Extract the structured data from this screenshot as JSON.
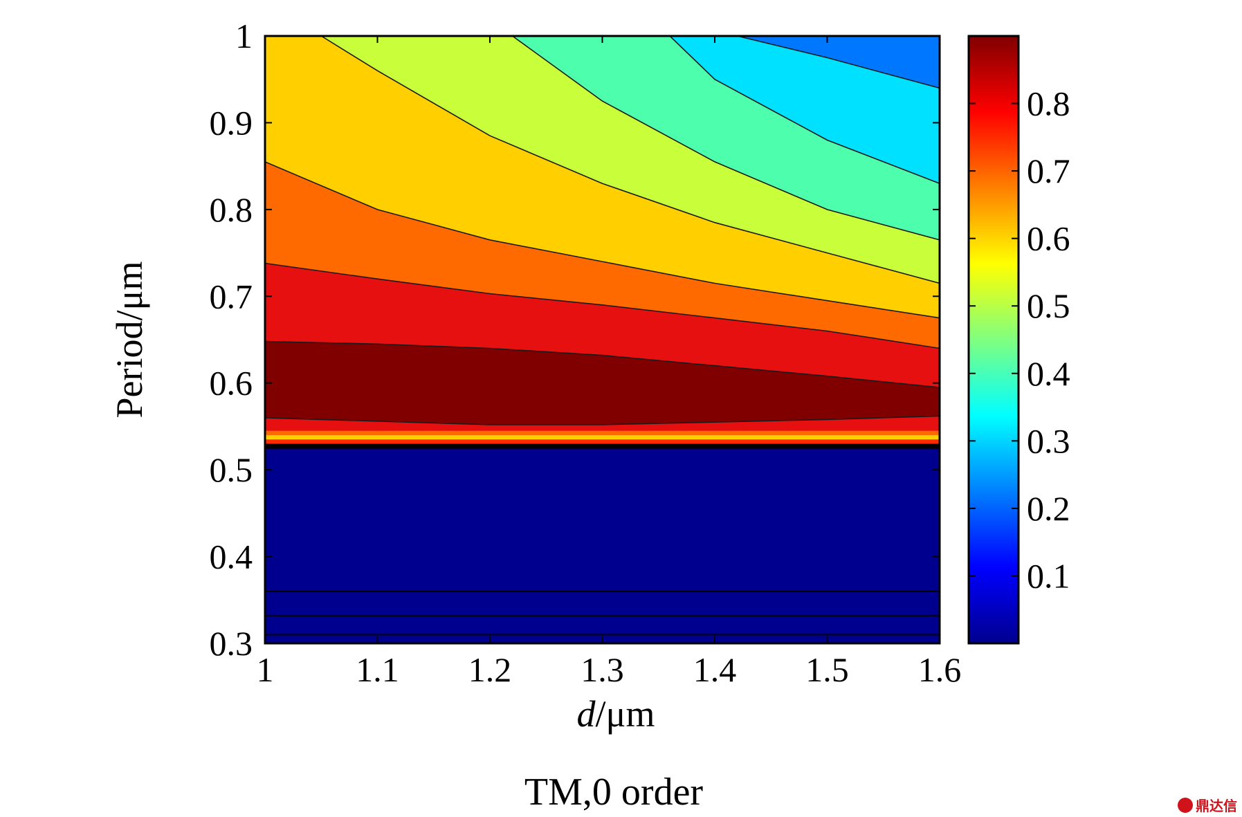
{
  "chart_data": {
    "type": "contour",
    "xlabel": "d/μm",
    "xlabel_italic_part": "d",
    "xlabel_unit": "/μm",
    "ylabel": "Period/μm",
    "caption": "TM,0 order",
    "xlim": [
      1,
      1.6
    ],
    "ylim": [
      0.3,
      1
    ],
    "xticks": [
      "1",
      "1.1",
      "1.2",
      "1.3",
      "1.4",
      "1.5",
      "1.6"
    ],
    "yticks": [
      "0.3",
      "0.4",
      "0.5",
      "0.6",
      "0.7",
      "0.8",
      "0.9",
      "1"
    ],
    "colorbar": {
      "ticks": [
        "0.1",
        "0.2",
        "0.3",
        "0.4",
        "0.5",
        "0.6",
        "0.7",
        "0.8"
      ],
      "range": [
        0,
        0.9
      ],
      "colormap": "jet"
    },
    "contour_levels": [
      {
        "level": 0.3,
        "period_at_d": [
          [
            1.42,
            1.0
          ],
          [
            1.5,
            0.975
          ],
          [
            1.6,
            0.94
          ]
        ]
      },
      {
        "level": 0.4,
        "period_at_d": [
          [
            1.36,
            1.0
          ],
          [
            1.4,
            0.95
          ],
          [
            1.5,
            0.88
          ],
          [
            1.6,
            0.83
          ]
        ]
      },
      {
        "level": 0.5,
        "period_at_d": [
          [
            1.22,
            1.0
          ],
          [
            1.3,
            0.925
          ],
          [
            1.4,
            0.855
          ],
          [
            1.5,
            0.8
          ],
          [
            1.6,
            0.765
          ]
        ]
      },
      {
        "level": 0.6,
        "period_at_d": [
          [
            1.05,
            1.0
          ],
          [
            1.1,
            0.96
          ],
          [
            1.2,
            0.885
          ],
          [
            1.3,
            0.83
          ],
          [
            1.4,
            0.785
          ],
          [
            1.5,
            0.75
          ],
          [
            1.6,
            0.715
          ]
        ]
      },
      {
        "level": 0.7,
        "period_at_d": [
          [
            1.0,
            0.855
          ],
          [
            1.1,
            0.8
          ],
          [
            1.2,
            0.765
          ],
          [
            1.3,
            0.74
          ],
          [
            1.4,
            0.715
          ],
          [
            1.5,
            0.695
          ],
          [
            1.6,
            0.675
          ]
        ]
      },
      {
        "level": 0.8,
        "period_at_d": [
          [
            1.0,
            0.738
          ],
          [
            1.1,
            0.72
          ],
          [
            1.2,
            0.703
          ],
          [
            1.3,
            0.69
          ],
          [
            1.4,
            0.675
          ],
          [
            1.5,
            0.66
          ],
          [
            1.6,
            0.64
          ]
        ]
      },
      {
        "level": 0.85,
        "period_at_d": [
          [
            1.0,
            0.648
          ],
          [
            1.1,
            0.645
          ],
          [
            1.2,
            0.64
          ],
          [
            1.3,
            0.632
          ],
          [
            1.4,
            0.62
          ],
          [
            1.5,
            0.608
          ],
          [
            1.6,
            0.595
          ]
        ]
      }
    ],
    "plateau_lower": {
      "level": 0.85,
      "period_at_d": [
        [
          1.0,
          0.56
        ],
        [
          1.2,
          0.552
        ],
        [
          1.3,
          0.552
        ],
        [
          1.4,
          0.555
        ],
        [
          1.5,
          0.558
        ],
        [
          1.6,
          0.562
        ]
      ]
    },
    "cutoff_band": {
      "period_low": 0.525,
      "period_high": 0.545
    },
    "low_region": {
      "period_low": 0.3,
      "period_high": 0.525,
      "value": 0.02,
      "lines_at_period": [
        0.36,
        0.332,
        0.31
      ]
    },
    "colors": {
      "deep_blue": "#00008f",
      "blue": "#0077ff",
      "cyan": "#00e0ff",
      "aqua_green": "#4dffad",
      "yellow_green": "#c8ff3a",
      "yellow_orange": "#ffcf00",
      "orange": "#ff6a00",
      "red": "#e61010",
      "dark_red": "#800000"
    },
    "watermark": "鼎达信"
  }
}
